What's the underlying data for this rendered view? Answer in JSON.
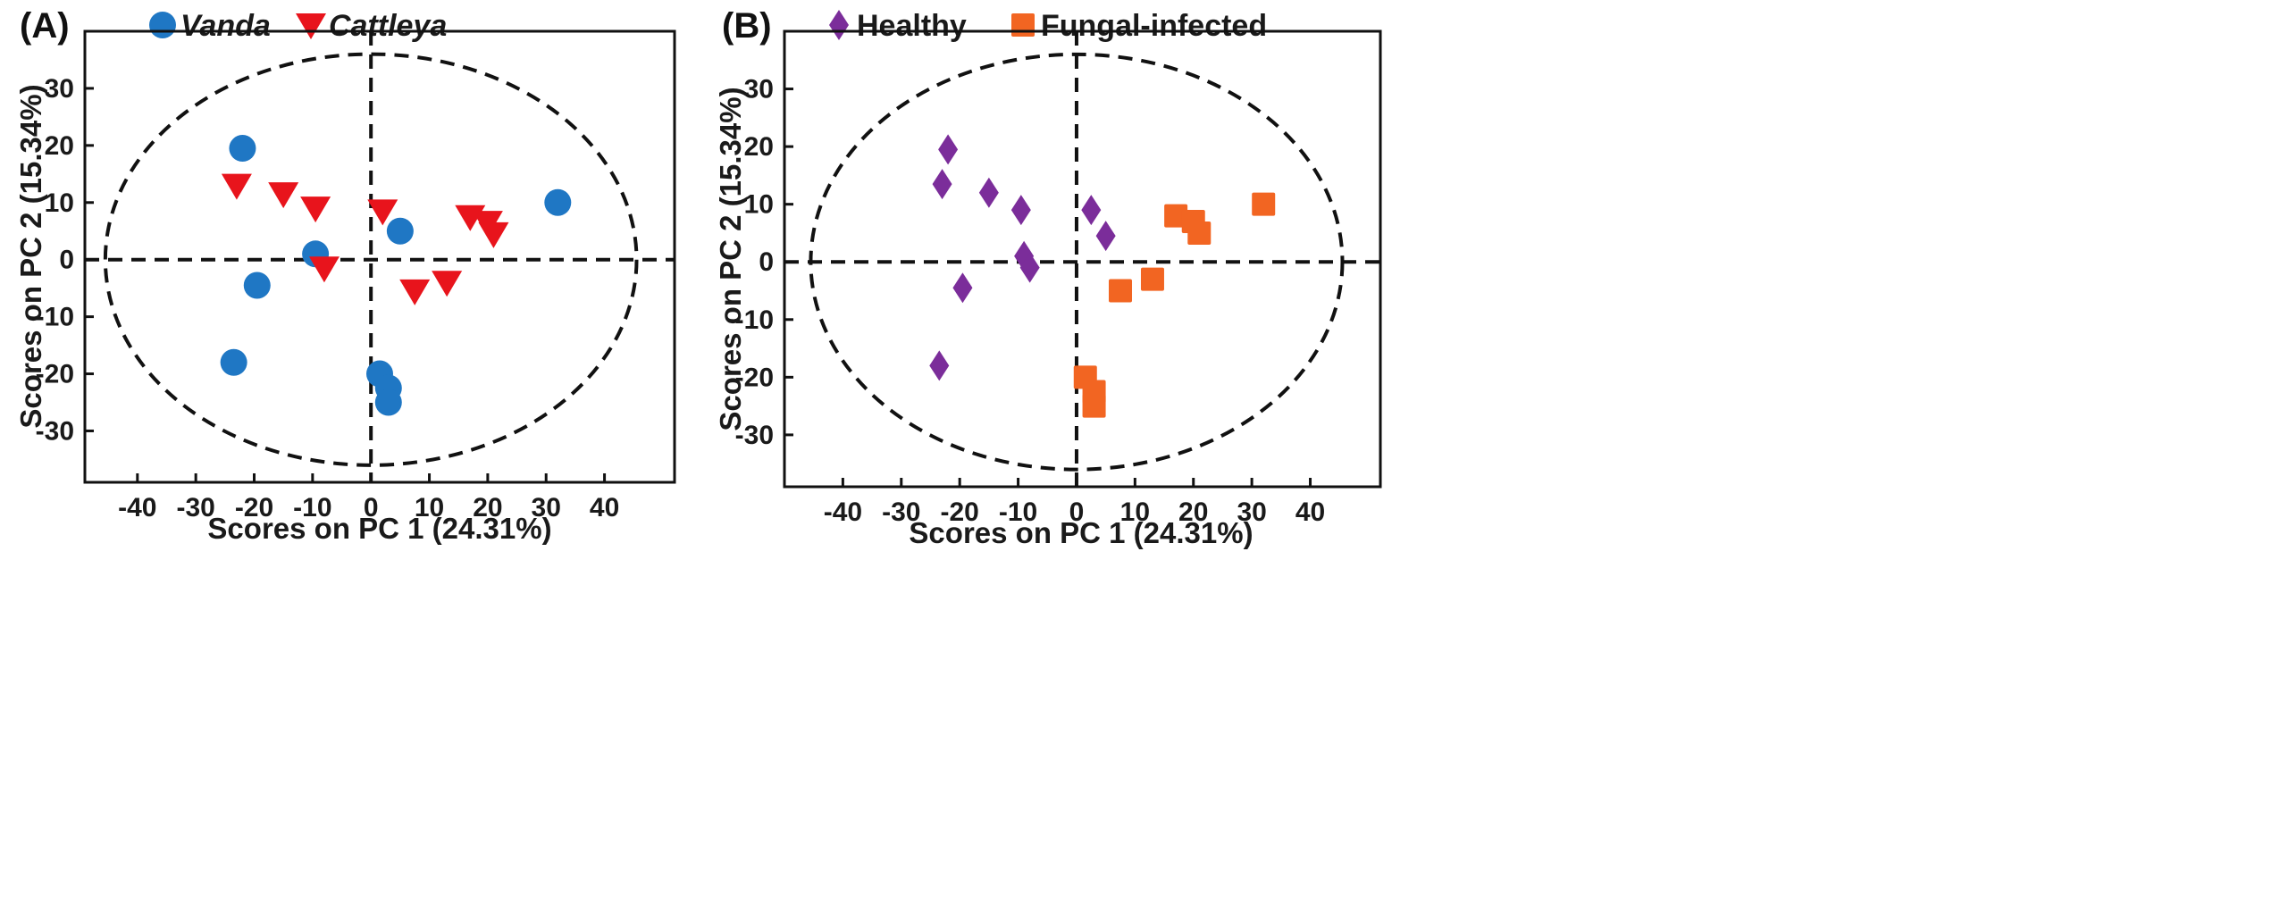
{
  "chart_data": [
    {
      "type": "scatter",
      "panel_label": "(A)",
      "xlabel": "Scores on PC 1 (24.31%)",
      "ylabel": "Scores on PC 2 (15.34%)",
      "xlim": [
        -49,
        52
      ],
      "ylim": [
        -39,
        40
      ],
      "xticks": [
        -40,
        -30,
        -20,
        -10,
        0,
        10,
        20,
        30,
        40
      ],
      "yticks": [
        30,
        20,
        10,
        0,
        -10,
        -20,
        -30
      ],
      "legend_position": "top-left",
      "series": [
        {
          "name": "Vanda",
          "marker": "circle",
          "color": "#1f77c4",
          "points": [
            [
              -22,
              19.5
            ],
            [
              -9.5,
              1
            ],
            [
              -19.5,
              -4.5
            ],
            [
              -23.5,
              -18
            ],
            [
              1.5,
              -20
            ],
            [
              3,
              -22.5
            ],
            [
              3,
              -25
            ],
            [
              5,
              5
            ],
            [
              32,
              10
            ]
          ]
        },
        {
          "name": "Cattleya",
          "marker": "triangle-down",
          "color": "#e8141c",
          "points": [
            [
              -23,
              13
            ],
            [
              -15,
              11.5
            ],
            [
              -9.5,
              9
            ],
            [
              -8,
              -1.5
            ],
            [
              2,
              8.5
            ],
            [
              7.5,
              -5.5
            ],
            [
              13,
              -4
            ],
            [
              17,
              7.5
            ],
            [
              20,
              6.5
            ],
            [
              21,
              4.5
            ]
          ]
        }
      ],
      "ellipse": {
        "center": [
          0,
          0
        ],
        "rx": 45.5,
        "ry": 36
      }
    },
    {
      "type": "scatter",
      "panel_label": "(B)",
      "xlabel": "Scores on PC 1 (24.31%)",
      "ylabel": "Scores on PC 2 (15.34%)",
      "xlim": [
        -50,
        52
      ],
      "ylim": [
        -39,
        40
      ],
      "xticks": [
        -40,
        -30,
        -20,
        -10,
        0,
        10,
        20,
        30,
        40
      ],
      "yticks": [
        30,
        20,
        10,
        0,
        -10,
        -20,
        -30
      ],
      "legend_position": "top-left",
      "series": [
        {
          "name": "Healthy",
          "marker": "diamond",
          "color": "#7b2d9a",
          "points": [
            [
              -22,
              19.5
            ],
            [
              -23,
              13.5
            ],
            [
              -15,
              12
            ],
            [
              -9.5,
              9
            ],
            [
              -9,
              1
            ],
            [
              -8,
              -1
            ],
            [
              -19.5,
              -4.5
            ],
            [
              -23.5,
              -18
            ],
            [
              2.5,
              9
            ],
            [
              5,
              4.5
            ]
          ]
        },
        {
          "name": "Fungal-infected",
          "marker": "square",
          "color": "#f26522",
          "points": [
            [
              17,
              8
            ],
            [
              20,
              7
            ],
            [
              21,
              5
            ],
            [
              32,
              10
            ],
            [
              7.5,
              -5
            ],
            [
              13,
              -3
            ],
            [
              1.5,
              -20
            ],
            [
              3,
              -22.5
            ],
            [
              3,
              -25
            ]
          ]
        }
      ],
      "ellipse": {
        "center": [
          0,
          0
        ],
        "rx": 45.5,
        "ry": 36
      }
    }
  ]
}
